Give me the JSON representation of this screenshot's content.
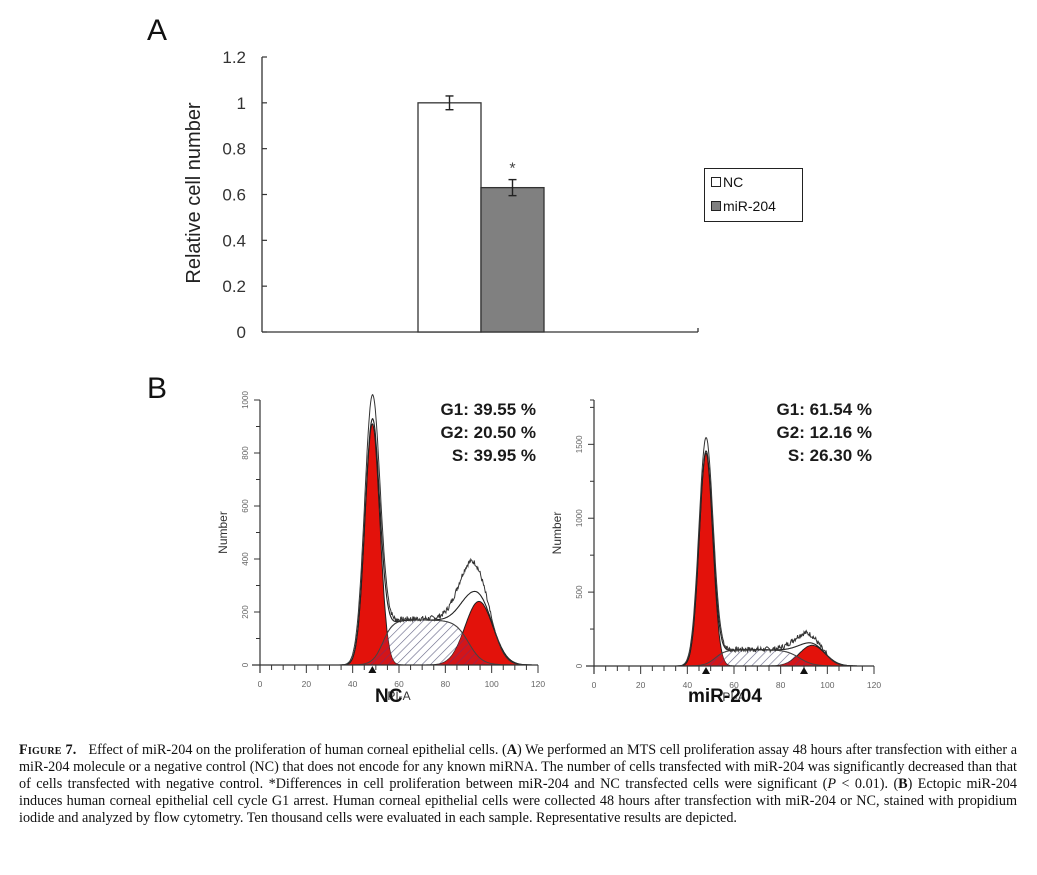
{
  "panels": {
    "a_label": "A",
    "b_label": "B"
  },
  "chart_data": [
    {
      "id": "A",
      "type": "bar",
      "title": "",
      "xlabel": "",
      "ylabel": "Relative cell number",
      "ylim": [
        0,
        1.2
      ],
      "yticks": [
        "0",
        "0.2",
        "0.4",
        "0.6",
        "0.8",
        "1",
        "1.2"
      ],
      "grid": false,
      "legend_position": "right",
      "categories": [
        ""
      ],
      "series": [
        {
          "name": "NC",
          "values": [
            1.0
          ],
          "error": [
            0.03
          ],
          "color": "#ffffff"
        },
        {
          "name": "miR-204",
          "values": [
            0.63
          ],
          "error": [
            0.035
          ],
          "color": "#808080",
          "annotation": "*"
        }
      ]
    },
    {
      "id": "B-NC",
      "type": "area",
      "title": "NC",
      "xlabel": "PI-A",
      "ylabel": "Number",
      "xlim": [
        0,
        120
      ],
      "ylim": [
        0,
        1000
      ],
      "xticks": [
        "0",
        "20",
        "40",
        "60",
        "80",
        "100",
        "120"
      ],
      "yticks": [
        "0",
        "200",
        "400",
        "600",
        "800",
        "1000"
      ],
      "annotations": [
        "G1: 39.55 %",
        "G2: 20.50 %",
        "S: 39.95 %"
      ],
      "g1": {
        "center": 48.5,
        "peak": 910,
        "width": 3.2
      },
      "g2": {
        "center": 94.5,
        "peak": 240,
        "width": 6.0
      },
      "s": {
        "start": 53,
        "end": 90,
        "height": 170
      },
      "histogram_peak": 1000,
      "markers": [
        48.5
      ],
      "fill_color": "#e3120b"
    },
    {
      "id": "B-miR-204",
      "type": "area",
      "title": "miR-204",
      "xlabel": "PI-A",
      "ylabel": "Number",
      "xlim": [
        0,
        120
      ],
      "ylim": [
        0,
        1800
      ],
      "xticks": [
        "0",
        "20",
        "40",
        "60",
        "80",
        "100",
        "120"
      ],
      "yticks": [
        "0",
        "500",
        "1000",
        "1500"
      ],
      "annotations": [
        "G1: 61.54 %",
        "G2: 12.16 %",
        "S: 26.30 %"
      ],
      "g1": {
        "center": 48,
        "peak": 1440,
        "width": 2.9
      },
      "g2": {
        "center": 93.5,
        "peak": 140,
        "width": 5.5
      },
      "s": {
        "start": 52,
        "end": 88,
        "height": 110
      },
      "histogram_peak": 1530,
      "markers": [
        48,
        90
      ],
      "fill_color": "#e3120b"
    }
  ],
  "legend": {
    "items": [
      {
        "label": "NC",
        "color": "#ffffff"
      },
      {
        "label": "miR-204",
        "color": "#808080"
      }
    ]
  },
  "caption": {
    "figure_label": "Figure 7.",
    "text_1": "Effect of miR-204 on the proliferation of human corneal epithelial cells. (",
    "bold_a": "A",
    "text_2": ") We performed an MTS cell proliferation assay 48 hours after transfection with either a miR-204 molecule or a negative control (NC) that does not encode for any known miRNA. The number of cells transfected with miR-204 was significantly decreased than that of cells transfected with negative control. *Differences in cell proliferation between miR-204 and NC transfected cells were significant (",
    "p_italic": "P",
    "text_3": " < 0.01). (",
    "bold_b": "B",
    "text_4": ") Ectopic miR-204 induces human corneal epithelial cell cycle G1 arrest. Human corneal epithelial cells were collected 48 hours after transfection with miR-204 or NC, stained with propidium iodide and analyzed by flow cytometry. Ten thousand cells were evaluated in each sample. Representative results are depicted."
  }
}
